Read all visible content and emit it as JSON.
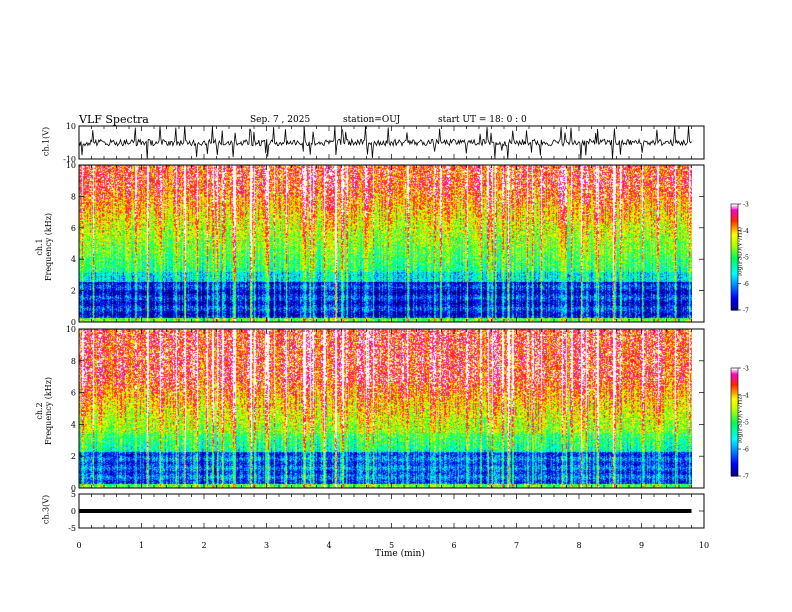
{
  "header": {
    "title": "VLF Spectra",
    "date": "Sep. 7  , 2025",
    "station": "station=OUJ",
    "start": "start  UT  =   18: 0  : 0"
  },
  "chart_data": [
    {
      "type": "line",
      "name": "ch1-waveform",
      "ylabel": "ch.1(V)",
      "xlim": [
        0,
        10
      ],
      "ylim": [
        -10,
        10
      ],
      "yticks": [
        "10",
        "-10"
      ]
    },
    {
      "type": "heatmap",
      "name": "ch1-spectrogram",
      "ylabel": "ch.1\nFrequency  (kHz)",
      "ylabel_line1": "ch.1",
      "ylabel_line2": "Frequency  (kHz)",
      "xlim": [
        0,
        10
      ],
      "ylim": [
        0,
        10
      ],
      "yticks": [
        "0",
        "2",
        "4",
        "6",
        "8",
        "10"
      ],
      "colorbar": {
        "label": "log(PSD)(V²/Hz)",
        "range": [
          -7,
          -3
        ],
        "ticks": [
          "-3",
          "-4",
          "-5",
          "-6",
          "-7"
        ]
      }
    },
    {
      "type": "heatmap",
      "name": "ch2-spectrogram",
      "ylabel_line1": "ch.2",
      "ylabel_line2": "Frequency  (kHz)",
      "xlim": [
        0,
        10
      ],
      "ylim": [
        0,
        10
      ],
      "yticks": [
        "0",
        "2",
        "4",
        "6",
        "8",
        "10"
      ],
      "colorbar": {
        "label": "log(PSD)(V²/Hz)",
        "range": [
          -7,
          -3
        ],
        "ticks": [
          "-3",
          "-4",
          "-5",
          "-6",
          "-7"
        ]
      }
    },
    {
      "type": "line",
      "name": "ch3-waveform",
      "ylabel": "ch.3(V)",
      "xlim": [
        0,
        10
      ],
      "ylim": [
        -5,
        5
      ],
      "yticks": [
        "5",
        "0",
        "-5"
      ],
      "constant_value": 0
    }
  ],
  "xaxis": {
    "label": "Time  (min)",
    "ticks": [
      "0",
      "1",
      "2",
      "3",
      "4",
      "5",
      "6",
      "7",
      "8",
      "9",
      "10"
    ],
    "data_end": 9.8
  },
  "colors": {
    "colormap": [
      "#000080",
      "#0000ff",
      "#00ffff",
      "#00ff00",
      "#ffff00",
      "#ff0000",
      "#ff00ff",
      "#ffffff"
    ]
  }
}
